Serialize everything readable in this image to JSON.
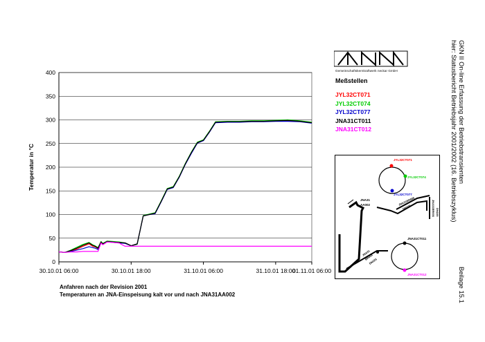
{
  "chart_data": {
    "type": "line",
    "ylabel": "Temperatur in °C",
    "xlabel": "",
    "ylim": [
      0,
      400
    ],
    "yticks": [
      "0",
      "50",
      "100",
      "150",
      "200",
      "250",
      "300",
      "350",
      "400"
    ],
    "xlim": [
      0,
      42
    ],
    "xticks": [
      {
        "x": 0,
        "label": "30.10.01 06:00"
      },
      {
        "x": 12,
        "label": "30.10.01 18:00"
      },
      {
        "x": 24,
        "label": "31.10.01 06:00"
      },
      {
        "x": 36,
        "label": "31.10.01 18:00"
      },
      {
        "x": 42,
        "label": "01.11.01 06:00"
      }
    ],
    "grid": true,
    "series": [
      {
        "name": "JYL32CT071",
        "color": "#ff0000",
        "x": [
          0,
          1,
          2,
          3,
          4,
          5,
          5.6,
          6,
          6.5,
          7,
          7.3,
          8,
          9,
          10,
          11,
          12,
          13,
          14,
          15,
          16,
          17,
          18,
          19,
          20,
          21,
          22,
          23,
          24,
          25,
          26,
          28,
          30,
          32,
          34,
          36,
          38,
          40,
          42
        ],
        "y": [
          21,
          20,
          23,
          27,
          33,
          38,
          33,
          32,
          28,
          42,
          38,
          43,
          42,
          41,
          40,
          34,
          38,
          97,
          100,
          103,
          128,
          154,
          158,
          180,
          207,
          230,
          252,
          257,
          275,
          295,
          296,
          296,
          297,
          297,
          298,
          298,
          297,
          294
        ]
      },
      {
        "name": "JYL32CT074",
        "color": "#00cc00",
        "x": [
          0,
          1,
          2,
          3,
          4,
          5,
          5.6,
          6,
          6.5,
          7,
          7.3,
          8,
          9,
          10,
          11,
          12,
          13,
          14,
          15,
          16,
          17,
          18,
          19,
          20,
          21,
          22,
          23,
          24,
          25,
          26,
          28,
          30,
          32,
          34,
          36,
          38,
          40,
          42
        ],
        "y": [
          21,
          20,
          25,
          31,
          37,
          41,
          36,
          34,
          30,
          43,
          39,
          44,
          43,
          42,
          40,
          34,
          37,
          98,
          101,
          104,
          129,
          155,
          159,
          181,
          208,
          232,
          253,
          258,
          276,
          296,
          297,
          297,
          298,
          298,
          299,
          300,
          298,
          295
        ]
      },
      {
        "name": "JYL32CT077",
        "color": "#0000cc",
        "x": [
          0,
          1,
          2,
          3,
          4,
          5,
          5.6,
          6,
          6.5,
          7,
          7.3,
          8,
          9,
          10,
          11,
          12,
          13,
          14,
          15,
          16,
          17,
          18,
          19,
          20,
          21,
          22,
          23,
          24,
          25,
          26,
          28,
          30,
          32,
          34,
          36,
          38,
          40,
          42
        ],
        "y": [
          21,
          20,
          22,
          25,
          28,
          32,
          30,
          29,
          26,
          40,
          37,
          42,
          41,
          40,
          39,
          34,
          38,
          97,
          100,
          102,
          127,
          153,
          157,
          179,
          206,
          229,
          251,
          256,
          274,
          294,
          295,
          295,
          296,
          296,
          297,
          297,
          296,
          293
        ]
      },
      {
        "name": "JNA31CT011",
        "color": "#000000",
        "x": [
          0,
          1,
          2,
          3,
          4,
          5,
          5.6,
          6,
          6.5,
          7,
          7.3,
          8,
          9,
          10,
          11,
          12,
          13,
          14,
          15,
          16,
          17,
          18,
          19,
          20,
          21,
          22,
          23,
          24,
          25,
          26,
          28,
          30,
          32,
          34,
          36,
          38,
          40,
          42
        ],
        "y": [
          21,
          20,
          24,
          29,
          35,
          40,
          35,
          33,
          29,
          42,
          38,
          43,
          42,
          41,
          40,
          34,
          38,
          97,
          100,
          103,
          128,
          154,
          158,
          180,
          207,
          231,
          252,
          257,
          275,
          295,
          296,
          296,
          297,
          297,
          298,
          299,
          297,
          294
        ]
      },
      {
        "name": "JNA31CT012",
        "color": "#ff00ff",
        "x": [
          0,
          1,
          2,
          3,
          4,
          5,
          5.6,
          6,
          6.5,
          7,
          7.3,
          8,
          9,
          10,
          10.5,
          11,
          12,
          14,
          18,
          24,
          30,
          36,
          42
        ],
        "y": [
          21,
          20,
          21,
          21,
          22,
          22,
          22,
          22,
          22,
          40,
          36,
          42,
          41,
          40,
          36,
          33,
          33,
          33,
          33,
          33,
          33,
          33,
          33
        ]
      }
    ]
  },
  "logo": {
    "text": "GKN",
    "caption": "Gemeinschaftskernkraftwerk neckar GmbH"
  },
  "legend_title": "Meßstellen",
  "legend": [
    {
      "name": "JYL32CT071",
      "color": "#ff0000"
    },
    {
      "name": "JYL32CT074",
      "color": "#00cc00"
    },
    {
      "name": "JYL32CT077",
      "color": "#0000cc"
    },
    {
      "name": "JNA31CT011",
      "color": "#000000"
    },
    {
      "name": "JNA31CT012",
      "color": "#ff00ff"
    }
  ],
  "caption": {
    "line1": "Anfahren nach der Revision 2001",
    "line2": "Temperaturen an JNA-Einspeisung kalt vor und nach JNA31AA002"
  },
  "side": {
    "line1": "GKN II  On-line Erfassung der Betriebstransienten",
    "line2": "hier: Statusbericht Betriebsjahr 2001/2002 (16. Betriebszyklus)",
    "beilage": "Beilage 15.1"
  },
  "schematic": {
    "labels": {
      "t071": "JYL32CT071",
      "t074": "JYL32CT074",
      "t077": "JYL32CT077",
      "t011": "JNA31CT011",
      "t012": "JNA31CT012",
      "valve1": "JNA31",
      "valve2": "AA002",
      "pipe1": "JNA31BR005",
      "pipe2": "DN225",
      "pipe3": "JNA31",
      "pipe4": "BR004",
      "pipe5": "DN225",
      "pipe6": "JNA31BR003",
      "pipe7": "DN225"
    }
  }
}
